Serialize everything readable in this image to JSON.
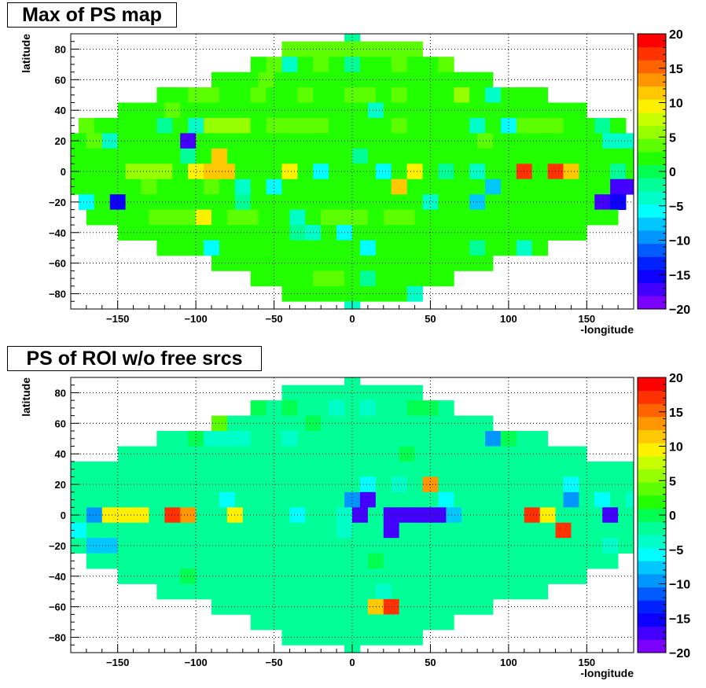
{
  "chart_data": [
    {
      "type": "heatmap",
      "title": "Max of PS map",
      "xlabel": "-longitude",
      "ylabel": "latitude",
      "xlim": [
        -180,
        180
      ],
      "ylim": [
        -90,
        90
      ],
      "bin_width_deg": 10,
      "xticks": [
        -150,
        -100,
        -50,
        0,
        50,
        100,
        150
      ],
      "yticks": [
        -80,
        -60,
        -40,
        -20,
        0,
        20,
        40,
        60,
        80
      ],
      "color_scale": {
        "min": -20,
        "max": 20,
        "labels": [
          20,
          15,
          10,
          5,
          0,
          -5,
          -10,
          -15,
          -20
        ]
      },
      "grid": true,
      "rows": [
        {
          "lat": 90,
          "values": [
            -2
          ]
        },
        {
          "lat": 80,
          "values": [
            3,
            3,
            3,
            3,
            3,
            3,
            3,
            3,
            3
          ]
        },
        {
          "lat": 70,
          "values": [
            2,
            3,
            -3,
            2,
            3,
            2,
            -2,
            2,
            2,
            3,
            2,
            2,
            3
          ]
        },
        {
          "lat": 60,
          "values": [
            2,
            2,
            2,
            3,
            2,
            2,
            2,
            2,
            2,
            2,
            2,
            2,
            2,
            2,
            2,
            2,
            2,
            2
          ]
        },
        {
          "lat": 50,
          "values": [
            2,
            2,
            3,
            3,
            2,
            2,
            3,
            2,
            2,
            3,
            2,
            2,
            3,
            3,
            2,
            3,
            2,
            2,
            2,
            5,
            2,
            -3,
            2,
            2,
            2
          ]
        },
        {
          "lat": 40,
          "values": [
            2,
            2,
            2,
            3,
            2,
            2,
            2,
            2,
            2,
            2,
            2,
            2,
            2,
            2,
            2,
            2,
            -3,
            2,
            2,
            2,
            2,
            2,
            2,
            2,
            2,
            2,
            2,
            2,
            2,
            2
          ]
        },
        {
          "lat": 30,
          "values": [
            3,
            2,
            2,
            2,
            2,
            -2,
            2,
            -3,
            5,
            5,
            5,
            2,
            3,
            3,
            3,
            3,
            2,
            2,
            2,
            2,
            3,
            2,
            2,
            2,
            2,
            -3,
            2,
            -5,
            3,
            3,
            3,
            2,
            2,
            -2,
            2
          ]
        },
        {
          "lat": 20,
          "values": [
            2,
            3,
            -3,
            2,
            2,
            2,
            2,
            -17,
            2,
            2,
            2,
            2,
            2,
            2,
            2,
            2,
            2,
            2,
            2,
            2,
            2,
            2,
            2,
            2,
            2,
            2,
            3,
            2,
            2,
            2,
            2,
            2,
            2,
            2,
            -3,
            -4
          ]
        },
        {
          "lat": 10,
          "values": [
            2,
            2,
            2,
            2,
            2,
            2,
            2,
            -2,
            2,
            11,
            2,
            2,
            2,
            2,
            2,
            2,
            2,
            2,
            -2,
            2,
            2,
            2,
            2,
            2,
            2,
            2,
            2,
            2,
            2,
            2,
            2,
            2,
            2,
            2,
            2,
            2
          ]
        },
        {
          "lat": 0,
          "values": [
            2,
            2,
            2,
            2,
            6,
            6,
            6,
            2,
            10,
            11,
            11,
            2,
            2,
            2,
            10,
            2,
            -5,
            2,
            2,
            2,
            -5,
            2,
            9,
            2,
            -2,
            2,
            -3,
            2,
            2,
            17,
            2,
            17,
            11,
            2,
            2,
            -2,
            2
          ]
        },
        {
          "lat": -10,
          "values": [
            2,
            2,
            2,
            2,
            2,
            3,
            2,
            2,
            2,
            3,
            2,
            -3,
            2,
            -5,
            2,
            2,
            2,
            2,
            2,
            2,
            2,
            11,
            2,
            2,
            2,
            2,
            2,
            -8,
            2,
            2,
            2,
            2,
            2,
            2,
            2,
            -17,
            -17
          ]
        },
        {
          "lat": -20,
          "values": [
            -5,
            2,
            -15,
            2,
            2,
            2,
            2,
            2,
            2,
            2,
            -2,
            2,
            2,
            2,
            2,
            2,
            2,
            2,
            2,
            2,
            2,
            2,
            -3,
            2,
            2,
            -8,
            2,
            2,
            2,
            2,
            2,
            2,
            2,
            -18,
            -16
          ]
        },
        {
          "lat": -30,
          "values": [
            2,
            2,
            2,
            2,
            3,
            3,
            3,
            10,
            2,
            3,
            3,
            2,
            2,
            -3,
            2,
            3,
            3,
            3,
            2,
            3,
            3,
            2,
            2,
            2,
            2,
            2,
            2,
            2,
            2,
            2,
            2,
            2,
            2,
            2
          ]
        },
        {
          "lat": -40,
          "values": [
            2,
            2,
            2,
            2,
            2,
            2,
            2,
            2,
            2,
            2,
            2,
            -2,
            -3,
            2,
            -5,
            2,
            2,
            2,
            2,
            2,
            2,
            2,
            2,
            2,
            2,
            2,
            2,
            2,
            2,
            2
          ]
        },
        {
          "lat": -50,
          "values": [
            2,
            2,
            2,
            -5,
            2,
            2,
            2,
            2,
            2,
            2,
            2,
            2,
            2,
            -5,
            2,
            2,
            2,
            2,
            2,
            2,
            -2,
            2,
            2,
            -3,
            2
          ]
        },
        {
          "lat": -60,
          "values": [
            2,
            2,
            2,
            2,
            2,
            2,
            2,
            2,
            2,
            2,
            2,
            2,
            2,
            2,
            2,
            2,
            2,
            2
          ]
        },
        {
          "lat": -70,
          "values": [
            2,
            2,
            2,
            2,
            3,
            3,
            2,
            -2,
            2,
            2,
            2,
            2,
            2
          ]
        },
        {
          "lat": -80,
          "values": [
            2,
            2,
            2,
            2,
            2,
            2,
            2,
            2,
            -3
          ]
        },
        {
          "lat": -90,
          "values": [
            -3
          ]
        }
      ]
    },
    {
      "type": "heatmap",
      "title": "PS of ROI w/o free srcs",
      "xlabel": "-longitude",
      "ylabel": "latitude",
      "xlim": [
        -180,
        180
      ],
      "ylim": [
        -90,
        90
      ],
      "bin_width_deg": 10,
      "xticks": [
        -150,
        -100,
        -50,
        0,
        50,
        100,
        150
      ],
      "yticks": [
        -80,
        -60,
        -40,
        -20,
        0,
        20,
        40,
        60,
        80
      ],
      "color_scale": {
        "min": -20,
        "max": 20,
        "labels": [
          20,
          15,
          10,
          5,
          0,
          -5,
          -10,
          -15,
          -20
        ]
      },
      "grid": true,
      "rows": [
        {
          "lat": 90,
          "values": [
            -2
          ]
        },
        {
          "lat": 80,
          "values": [
            -2,
            -2,
            -2,
            -2,
            -2,
            -2,
            -2,
            -2,
            -2
          ]
        },
        {
          "lat": 70,
          "values": [
            0,
            -2,
            0,
            -2,
            -2,
            -3,
            -2,
            -3,
            -2,
            -2,
            0,
            0,
            -2
          ]
        },
        {
          "lat": 60,
          "values": [
            3,
            -2,
            -2,
            -2,
            -2,
            -2,
            0,
            -2,
            -2,
            -2,
            -2,
            -2,
            -2,
            -2,
            -2,
            -2,
            -2,
            -2
          ]
        },
        {
          "lat": 50,
          "values": [
            -2,
            -2,
            0,
            -3,
            -3,
            -3,
            -2,
            -2,
            -3,
            -2,
            -2,
            -2,
            -2,
            -2,
            -2,
            -2,
            -2,
            -2,
            -2,
            -2,
            -2,
            -10,
            0,
            -2,
            -2
          ]
        },
        {
          "lat": 40,
          "values": [
            -2,
            -2,
            -2,
            -2,
            -2,
            -2,
            -2,
            -2,
            -2,
            -2,
            -2,
            -2,
            -2,
            -2,
            -2,
            -2,
            -2,
            -2,
            0,
            -2,
            -2,
            -2,
            -2,
            -2,
            -2,
            -2,
            -2,
            -2,
            -2,
            -2
          ]
        },
        {
          "lat": 30,
          "values": [
            -2,
            -2,
            -2,
            -2,
            -2,
            -2,
            -2,
            -2,
            -2,
            -2,
            -2,
            -2,
            -2,
            -2,
            -2,
            -2,
            -2,
            -2,
            -2,
            -2,
            -2,
            -2,
            -2,
            -2,
            -2,
            -2,
            -2,
            -2,
            -2,
            -2,
            -2,
            -2,
            -2,
            -2,
            -2,
            -2
          ]
        },
        {
          "lat": 20,
          "values": [
            -2,
            -2,
            -2,
            -2,
            -2,
            -2,
            -2,
            -2,
            -2,
            -2,
            -2,
            -2,
            -2,
            -2,
            -2,
            -2,
            -2,
            -2,
            -2,
            -5,
            -2,
            -3,
            -2,
            14,
            -2,
            -2,
            -2,
            -2,
            -2,
            -2,
            -2,
            -2,
            -5,
            -2,
            -2,
            -2,
            -2
          ]
        },
        {
          "lat": 10,
          "values": [
            -2,
            -2,
            -2,
            -2,
            -2,
            -2,
            -2,
            -2,
            -2,
            -2,
            -2,
            -5,
            -2,
            -2,
            -2,
            -2,
            -2,
            -2,
            -2,
            -10,
            -17,
            -2,
            -2,
            -2,
            -2,
            -5,
            -2,
            -2,
            -2,
            -2,
            -2,
            -2,
            -2,
            -10,
            -2,
            -5,
            -2,
            -3,
            -2
          ]
        },
        {
          "lat": 0,
          "values": [
            -2,
            9,
            -2,
            -10,
            9,
            9,
            9,
            -2,
            18,
            14,
            -2,
            -2,
            9,
            -2,
            -2,
            -2,
            -5,
            -2,
            -2,
            -3,
            -18,
            -2,
            -18,
            -18,
            -18,
            -18,
            -8,
            -2,
            -2,
            -2,
            -2,
            18,
            9,
            -2,
            -2,
            -2,
            -17,
            -2,
            14,
            9
          ]
        },
        {
          "lat": -10,
          "values": [
            -2,
            -5,
            -2,
            -2,
            -2,
            -2,
            -2,
            -2,
            -2,
            -2,
            -2,
            -2,
            -2,
            -2,
            -2,
            -2,
            -2,
            -2,
            -3,
            -2,
            -2,
            -18,
            -2,
            -2,
            -2,
            -2,
            -2,
            -2,
            -2,
            -2,
            -2,
            -2,
            18,
            -2,
            -2,
            -2,
            -2,
            -2
          ]
        },
        {
          "lat": -20,
          "values": [
            -2,
            -8,
            -8,
            -2,
            -2,
            -2,
            -2,
            -2,
            -2,
            -2,
            -2,
            -2,
            -2,
            -2,
            -2,
            -2,
            -2,
            -2,
            -2,
            -2,
            -2,
            -2,
            -2,
            -2,
            -2,
            -2,
            -2,
            -2,
            -2,
            -2,
            -2,
            -2,
            -2,
            -2,
            -3,
            -2
          ]
        },
        {
          "lat": -30,
          "values": [
            -2,
            -2,
            -2,
            -2,
            -2,
            -2,
            -2,
            -2,
            -2,
            -2,
            -2,
            -2,
            -2,
            -2,
            -2,
            -2,
            -2,
            -2,
            0,
            -2,
            -2,
            -2,
            -2,
            -2,
            -2,
            -2,
            -2,
            -2,
            -2,
            -2,
            -2,
            -2,
            -2,
            -2
          ]
        },
        {
          "lat": -40,
          "values": [
            -2,
            -2,
            -2,
            -2,
            0,
            -2,
            -2,
            -2,
            -2,
            -2,
            -2,
            -2,
            -2,
            -2,
            -2,
            -2,
            -2,
            -2,
            -2,
            -2,
            -2,
            -2,
            -2,
            -2,
            -2,
            -2,
            -2,
            -2,
            -2,
            -2
          ]
        },
        {
          "lat": -50,
          "values": [
            -2,
            -2,
            -2,
            -2,
            -2,
            -2,
            -2,
            -2,
            -2,
            -2,
            -2,
            -2,
            -2,
            -2,
            -3,
            -2,
            -2,
            -2,
            -2,
            -2,
            -2,
            -2,
            -2,
            -2,
            -2
          ]
        },
        {
          "lat": -60,
          "values": [
            -2,
            -2,
            -2,
            -2,
            -2,
            -2,
            -2,
            -2,
            -2,
            -2,
            11,
            18,
            -2,
            -2,
            -2,
            -2,
            -2,
            -2
          ]
        },
        {
          "lat": -70,
          "values": [
            -2,
            -2,
            -2,
            -2,
            -2,
            -2,
            -2,
            -2,
            -2,
            -2,
            -2,
            -2,
            -2
          ]
        },
        {
          "lat": -80,
          "values": [
            -2,
            -2,
            -2,
            -2,
            -2,
            -2,
            -2,
            -2,
            -2
          ]
        },
        {
          "lat": -90,
          "values": [
            -2
          ]
        }
      ]
    }
  ]
}
